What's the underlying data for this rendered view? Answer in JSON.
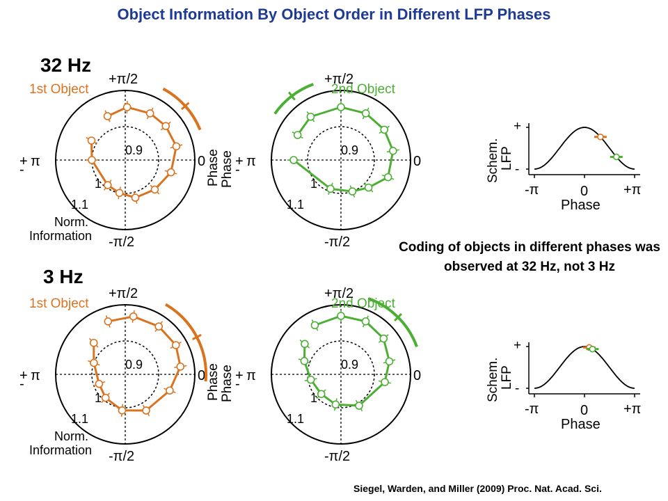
{
  "title": "Object Information By Object Order in Different LFP Phases",
  "bands": [
    {
      "label": "32 Hz"
    },
    {
      "label": "3 Hz"
    }
  ],
  "caption": "Coding of objects in different phases was observed at 32 Hz, not 3 Hz",
  "citation": "Siegel, Warden, and Miller (2009) Proc. Nat. Acad. Sci.",
  "colors": {
    "first_object": "#d9731f",
    "second_object": "#4caf34",
    "title": "#1f3a93"
  },
  "polar_labels": {
    "top": "+π/2",
    "bottom": "-π/2",
    "left": "π",
    "left_sign": "+\n-",
    "right": "0",
    "phase": "Phase",
    "ring_inner": "0.9",
    "ring_mid": "1",
    "ring_outer": "1.1",
    "norm": "Norm.",
    "information": "Information"
  },
  "lfp_labels": {
    "ylabel_1": "Schem.",
    "ylabel_2": "LFP",
    "plus": "+",
    "minus": "-",
    "xt_left": "-π",
    "xt_mid": "0",
    "xt_right": "+π",
    "xlabel": "Phase"
  },
  "chart_data": [
    {
      "type": "scatter",
      "coordinate": "polar",
      "band": "32 Hz",
      "panel": "1st Object",
      "title": "1st Object",
      "theta_label": "Phase",
      "r_label": "Norm. Information",
      "r_ticks": [
        0.9,
        1,
        1.1
      ],
      "theta_ticks": [
        "0",
        "+π/2",
        "π",
        "-π/2"
      ],
      "points": [
        {
          "phase_deg": 112,
          "norm_info": 1.02
        },
        {
          "phase_deg": 88,
          "norm_info": 1.04
        },
        {
          "phase_deg": 62,
          "norm_info": 1.04
        },
        {
          "phase_deg": 40,
          "norm_info": 1.04
        },
        {
          "phase_deg": 15,
          "norm_info": 1.04
        },
        {
          "phase_deg": -15,
          "norm_info": 1.02
        },
        {
          "phase_deg": -45,
          "norm_info": 1.0
        },
        {
          "phase_deg": -75,
          "norm_info": 0.99
        },
        {
          "phase_deg": -100,
          "norm_info": 0.97
        },
        {
          "phase_deg": -125,
          "norm_info": 0.96
        },
        {
          "phase_deg": 180,
          "norm_info": 0.97
        },
        {
          "phase_deg": 150,
          "norm_info": 0.99
        }
      ],
      "preferred_phase_arc_deg": [
        22,
        62
      ]
    },
    {
      "type": "scatter",
      "coordinate": "polar",
      "band": "32 Hz",
      "panel": "2nd Object",
      "title": "2nd Object",
      "theta_label": "Phase",
      "r_label": "Norm. Information",
      "r_ticks": [
        0.9,
        1,
        1.1
      ],
      "theta_ticks": [
        "0",
        "+π/2",
        "π",
        "-π/2"
      ],
      "points": [
        {
          "phase_deg": 150,
          "norm_info": 1.03
        },
        {
          "phase_deg": 125,
          "norm_info": 1.04
        },
        {
          "phase_deg": 90,
          "norm_info": 1.04
        },
        {
          "phase_deg": 62,
          "norm_info": 1.04
        },
        {
          "phase_deg": 35,
          "norm_info": 1.04
        },
        {
          "phase_deg": 10,
          "norm_info": 1.04
        },
        {
          "phase_deg": -20,
          "norm_info": 1.03
        },
        {
          "phase_deg": -45,
          "norm_info": 0.99
        },
        {
          "phase_deg": -70,
          "norm_info": 0.97
        },
        {
          "phase_deg": -110,
          "norm_info": 0.96
        },
        {
          "phase_deg": 180,
          "norm_info": 1.02
        }
      ],
      "preferred_phase_arc_deg": [
        110,
        145
      ]
    },
    {
      "type": "scatter",
      "coordinate": "polar",
      "band": "3 Hz",
      "panel": "1st Object",
      "title": "1st Object",
      "theta_label": "Phase",
      "r_label": "Norm. Information",
      "r_ticks": [
        0.9,
        1,
        1.1
      ],
      "theta_ticks": [
        "0",
        "+π/2",
        "π",
        "-π/2"
      ],
      "points": [
        {
          "phase_deg": 108,
          "norm_info": 1.05
        },
        {
          "phase_deg": 82,
          "norm_info": 1.06
        },
        {
          "phase_deg": 55,
          "norm_info": 1.06
        },
        {
          "phase_deg": 30,
          "norm_info": 1.06
        },
        {
          "phase_deg": 8,
          "norm_info": 1.05
        },
        {
          "phase_deg": -20,
          "norm_info": 1.02
        },
        {
          "phase_deg": -60,
          "norm_info": 1.0
        },
        {
          "phase_deg": -95,
          "norm_info": 0.98
        },
        {
          "phase_deg": -130,
          "norm_info": 0.96
        },
        {
          "phase_deg": -160,
          "norm_info": 0.95
        },
        {
          "phase_deg": 160,
          "norm_info": 0.97
        },
        {
          "phase_deg": 135,
          "norm_info": 1.01
        }
      ],
      "preferred_phase_arc_deg": [
        -5,
        60
      ]
    },
    {
      "type": "scatter",
      "coordinate": "polar",
      "band": "3 Hz",
      "panel": "2nd Object",
      "title": "2nd Object",
      "theta_label": "Phase",
      "r_label": "Norm. Information",
      "r_ticks": [
        0.9,
        1,
        1.1
      ],
      "theta_ticks": [
        "0",
        "+π/2",
        "π",
        "-π/2"
      ],
      "points": [
        {
          "phase_deg": 118,
          "norm_info": 1.05
        },
        {
          "phase_deg": 90,
          "norm_info": 1.06
        },
        {
          "phase_deg": 65,
          "norm_info": 1.06
        },
        {
          "phase_deg": 40,
          "norm_info": 1.05
        },
        {
          "phase_deg": 15,
          "norm_info": 1.03
        },
        {
          "phase_deg": -10,
          "norm_info": 1.01
        },
        {
          "phase_deg": -60,
          "norm_info": 0.98
        },
        {
          "phase_deg": -100,
          "norm_info": 0.96
        },
        {
          "phase_deg": -135,
          "norm_info": 0.95
        },
        {
          "phase_deg": -170,
          "norm_info": 0.96
        },
        {
          "phase_deg": 160,
          "norm_info": 0.99
        },
        {
          "phase_deg": 140,
          "norm_info": 1.02
        }
      ],
      "preferred_phase_arc_deg": [
        20,
        70
      ]
    },
    {
      "type": "line",
      "band": "32 Hz",
      "panel": "schematic LFP",
      "xlabel": "Phase",
      "ylabel": "Schem. LFP",
      "xticks": [
        "-π",
        "0",
        "+π"
      ],
      "yticks": [
        "+",
        "-"
      ],
      "curve": "cosine",
      "markers": [
        {
          "object": "1st Object",
          "phase_rad": 1.0
        },
        {
          "object": "2nd Object",
          "phase_rad": 2.0
        }
      ]
    },
    {
      "type": "line",
      "band": "3 Hz",
      "panel": "schematic LFP",
      "xlabel": "Phase",
      "ylabel": "Schem. LFP",
      "xticks": [
        "-π",
        "0",
        "+π"
      ],
      "yticks": [
        "+",
        "-"
      ],
      "curve": "cosine",
      "markers": [
        {
          "object": "1st Object",
          "phase_rad": 0.3
        },
        {
          "object": "2nd Object",
          "phase_rad": 0.5
        }
      ]
    }
  ]
}
